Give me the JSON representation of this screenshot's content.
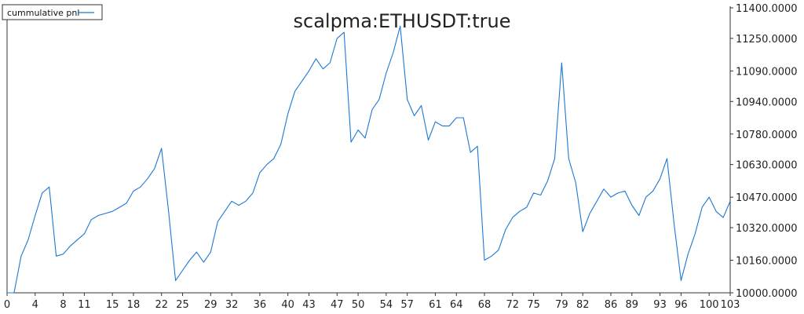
{
  "chart_data": {
    "type": "line",
    "title": "scalpma:ETHUSDT:true",
    "legend": {
      "label": "cummulative pnl",
      "position": "top-left"
    },
    "line_color": "#1f77d4",
    "xlim": [
      0,
      103
    ],
    "ylim": [
      10000,
      11400
    ],
    "x_ticks": [
      0,
      4,
      8,
      11,
      15,
      18,
      22,
      25,
      29,
      32,
      36,
      40,
      43,
      47,
      50,
      54,
      57,
      61,
      64,
      68,
      72,
      75,
      79,
      82,
      86,
      89,
      93,
      96,
      100,
      103
    ],
    "y_ticks": [
      {
        "value": 10000,
        "label": "10000.0000"
      },
      {
        "value": 10160,
        "label": "10160.0000"
      },
      {
        "value": 10320,
        "label": "10320.0000"
      },
      {
        "value": 10470,
        "label": "10470.0000"
      },
      {
        "value": 10630,
        "label": "10630.0000"
      },
      {
        "value": 10780,
        "label": "10780.0000"
      },
      {
        "value": 10940,
        "label": "10940.0000"
      },
      {
        "value": 11090,
        "label": "11090.0000"
      },
      {
        "value": 11250,
        "label": "11250.0000"
      },
      {
        "value": 11400,
        "label": "11400.0000"
      }
    ],
    "grid": false,
    "series": [
      {
        "name": "cummulative pnl",
        "x": [
          0,
          1,
          2,
          3,
          4,
          5,
          6,
          7,
          8,
          9,
          10,
          11,
          12,
          13,
          14,
          15,
          16,
          17,
          18,
          19,
          20,
          21,
          22,
          23,
          24,
          25,
          26,
          27,
          28,
          29,
          30,
          31,
          32,
          33,
          34,
          35,
          36,
          37,
          38,
          39,
          40,
          41,
          42,
          43,
          44,
          45,
          46,
          47,
          48,
          49,
          50,
          51,
          52,
          53,
          54,
          55,
          56,
          57,
          58,
          59,
          60,
          61,
          62,
          63,
          64,
          65,
          66,
          67,
          68,
          69,
          70,
          71,
          72,
          73,
          74,
          75,
          76,
          77,
          78,
          79,
          80,
          81,
          82,
          83,
          84,
          85,
          86,
          87,
          88,
          89,
          90,
          91,
          92,
          93,
          94,
          95,
          96,
          97,
          98,
          99,
          100,
          101,
          102,
          103
        ],
        "values": [
          10000,
          10000,
          10180,
          10260,
          10380,
          10490,
          10520,
          10180,
          10190,
          10230,
          10260,
          10290,
          10360,
          10380,
          10390,
          10400,
          10420,
          10440,
          10500,
          10520,
          10560,
          10610,
          10710,
          10400,
          10060,
          10110,
          10160,
          10200,
          10150,
          10200,
          10350,
          10400,
          10450,
          10430,
          10450,
          10490,
          10590,
          10630,
          10660,
          10730,
          10880,
          10990,
          11040,
          11090,
          11150,
          11100,
          11130,
          11250,
          11280,
          10740,
          10800,
          10760,
          10900,
          10950,
          11080,
          11180,
          11310,
          10950,
          10870,
          10920,
          10750,
          10840,
          10820,
          10820,
          10860,
          10860,
          10690,
          10720,
          10160,
          10180,
          10210,
          10310,
          10370,
          10400,
          10420,
          10490,
          10480,
          10550,
          10660,
          11130,
          10660,
          10540,
          10300,
          10390,
          10450,
          10510,
          10470,
          10490,
          10500,
          10430,
          10380,
          10470,
          10500,
          10560,
          10660,
          10340,
          10060,
          10190,
          10290,
          10420,
          10470,
          10400,
          10370,
          10450
        ]
      }
    ]
  }
}
